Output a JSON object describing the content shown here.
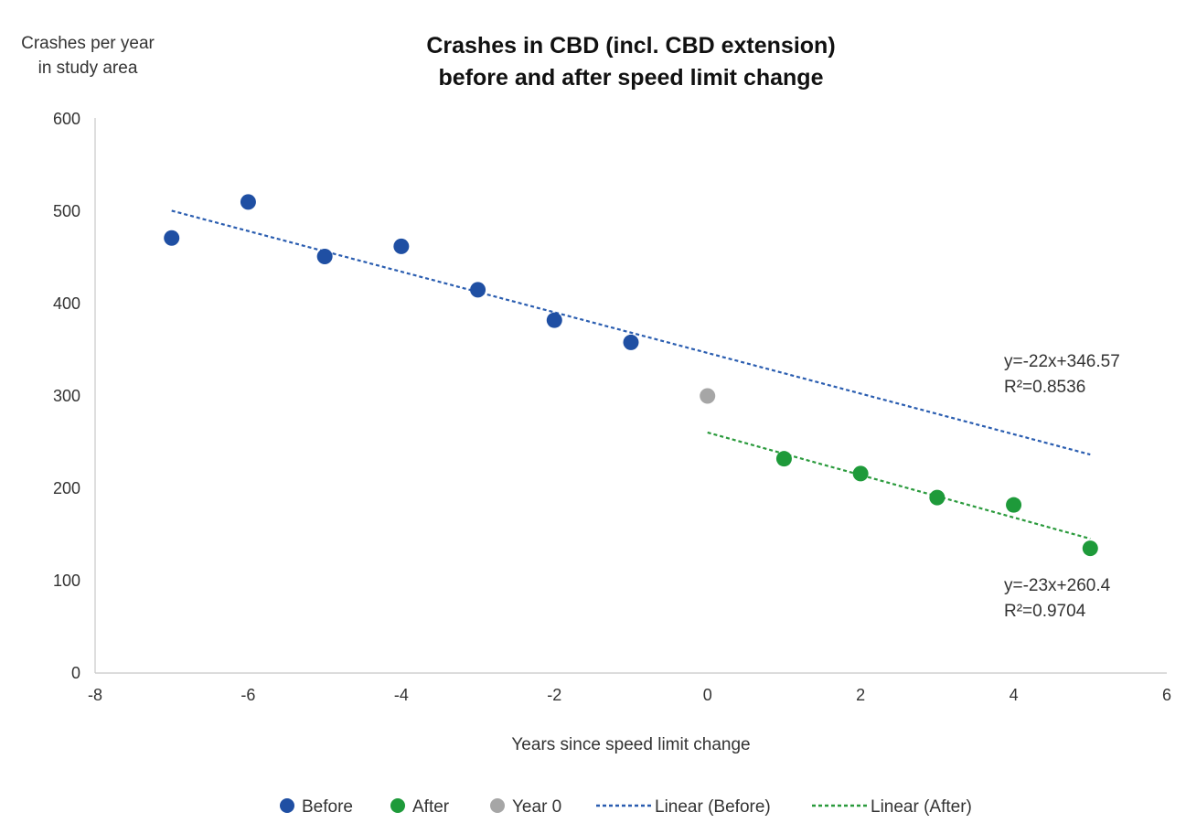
{
  "chart_data": {
    "type": "scatter",
    "title_lines": [
      "Crashes in CBD (incl. CBD extension)",
      "before and after speed limit change"
    ],
    "ylabel_lines": [
      "Crashes per year",
      "in study area"
    ],
    "xlabel": "Years since speed limit change",
    "xlim": [
      -8,
      6
    ],
    "ylim": [
      0,
      600
    ],
    "xticks": [
      -8,
      -6,
      -4,
      -2,
      0,
      2,
      4,
      6
    ],
    "yticks": [
      0,
      100,
      200,
      300,
      400,
      500,
      600
    ],
    "grid": false,
    "legend_position": "bottom",
    "series": [
      {
        "name": "Before",
        "color": "#1f4fa3",
        "x": [
          -7,
          -6,
          -5,
          -4,
          -3,
          -2,
          -1
        ],
        "y": [
          471,
          510,
          451,
          462,
          415,
          382,
          358
        ]
      },
      {
        "name": "After",
        "color": "#1e9a3a",
        "x": [
          1,
          2,
          3,
          4,
          5
        ],
        "y": [
          232,
          216,
          190,
          182,
          135
        ]
      },
      {
        "name": "Year 0",
        "color": "#a6a6a6",
        "x": [
          0
        ],
        "y": [
          300
        ]
      }
    ],
    "trendlines": [
      {
        "name": "Linear (Before)",
        "color": "#2a5db0",
        "slope": -22,
        "intercept": 346.57,
        "x_range": [
          -7,
          5
        ],
        "equation": "y=-22x+346.57",
        "r2": "R²=0.8536"
      },
      {
        "name": "Linear (After)",
        "color": "#2a9a3c",
        "slope": -23,
        "intercept": 260.4,
        "x_range": [
          0,
          5
        ],
        "equation": "y=-23x+260.4",
        "r2": "R²=0.9704"
      }
    ]
  }
}
